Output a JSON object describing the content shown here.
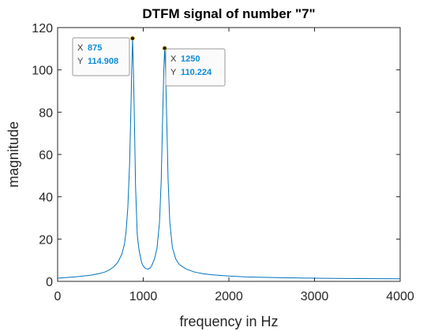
{
  "chart_data": {
    "type": "line",
    "title": "DTFM signal of number \"7\"",
    "xlabel": "frequency in Hz",
    "ylabel": "magnitude",
    "xlim": [
      0,
      4000
    ],
    "ylim": [
      0,
      120
    ],
    "xticks": [
      0,
      1000,
      2000,
      3000,
      4000
    ],
    "yticks": [
      0,
      20,
      40,
      60,
      80,
      100,
      120
    ],
    "grid": false,
    "series": [
      {
        "color": "#0072bd",
        "x": [
          0,
          100,
          200,
          300,
          400,
          500,
          550,
          600,
          650,
          700,
          750,
          780,
          800,
          820,
          840,
          855,
          865,
          875,
          885,
          895,
          910,
          930,
          950,
          980,
          1000,
          1030,
          1060,
          1080,
          1100,
          1130,
          1160,
          1190,
          1210,
          1225,
          1240,
          1250,
          1260,
          1275,
          1290,
          1310,
          1340,
          1380,
          1420,
          1500,
          1600,
          1700,
          1800,
          2000,
          2200,
          2500,
          3000,
          3500,
          4000
        ],
        "y": [
          1.5,
          1.8,
          2.1,
          2.5,
          3.0,
          3.8,
          4.4,
          5.3,
          6.7,
          8.8,
          12.8,
          17.5,
          23.8,
          35,
          55,
          80,
          100,
          114.908,
          100,
          80,
          45,
          22,
          15,
          9,
          7.2,
          6.0,
          5.8,
          6.3,
          7.5,
          10.5,
          15.5,
          28,
          48,
          75,
          100,
          110.224,
          100,
          75,
          48,
          28,
          16,
          10.5,
          8.0,
          5.8,
          4.4,
          3.6,
          3.1,
          2.5,
          2.1,
          1.8,
          1.5,
          1.3,
          1.2
        ]
      }
    ],
    "datatips": [
      {
        "x_key": "X",
        "x_value": "875",
        "y_key": "Y",
        "y_value": "114.908",
        "x": 875,
        "y": 114.908
      },
      {
        "x_key": "X",
        "x_value": "1250",
        "y_key": "Y",
        "y_value": "110.224",
        "x": 1250,
        "y": 110.224
      }
    ]
  }
}
